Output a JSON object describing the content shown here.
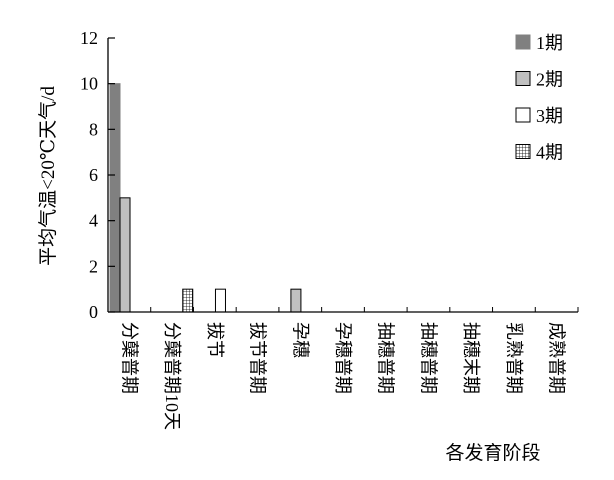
{
  "chart_data": {
    "type": "bar",
    "title": "",
    "xlabel": "各发育阶段",
    "ylabel": "平均气温<20℃天气/d",
    "ylim": [
      0,
      12
    ],
    "yticks": [
      0,
      2,
      4,
      6,
      8,
      10,
      12
    ],
    "grid": false,
    "legend_position": "top-right",
    "categories": [
      "分蘖普期",
      "分蘖普期10天",
      "拔节",
      "拔节普期",
      "孕穗",
      "孕穗普期",
      "抽穗普期",
      "抽穗普期",
      "抽穗末期",
      "乳熟普期",
      "成熟普期"
    ],
    "series": [
      {
        "name": "1期",
        "values": [
          10,
          0,
          0,
          0,
          0,
          0,
          0,
          0,
          0,
          0,
          0
        ],
        "color": "#808080",
        "border": "#808080",
        "fill_pattern": "solid"
      },
      {
        "name": "2期",
        "values": [
          5,
          0,
          0,
          0,
          1,
          0,
          0,
          0,
          0,
          0,
          0
        ],
        "color": "#c0c0c0",
        "border": "#000000",
        "fill_pattern": "solid"
      },
      {
        "name": "3期",
        "values": [
          0,
          0,
          1,
          0,
          0,
          0,
          0,
          0,
          0,
          0,
          0
        ],
        "color": "#ffffff",
        "border": "#000000",
        "fill_pattern": "solid"
      },
      {
        "name": "4期",
        "values": [
          0,
          1,
          0,
          0,
          0,
          0,
          0,
          0,
          0,
          0,
          0
        ],
        "color": "#ffffff",
        "border": "#000000",
        "fill_pattern": "grid"
      }
    ]
  }
}
